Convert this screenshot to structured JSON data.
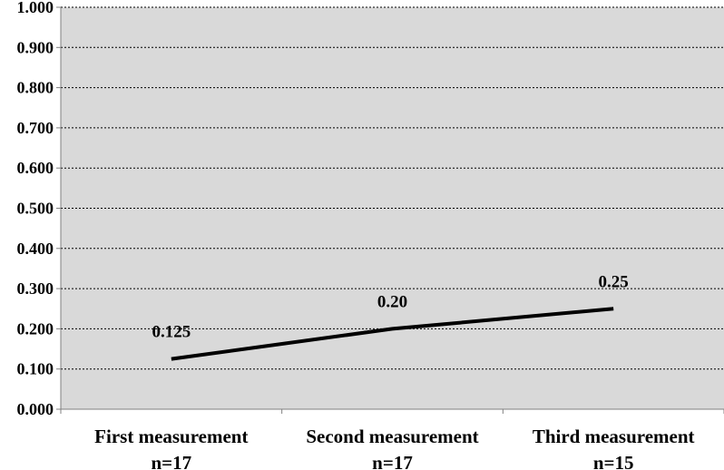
{
  "chart_data": {
    "type": "line",
    "categories": [
      [
        "First measurement",
        "n=17"
      ],
      [
        "Second measurement",
        "n=17"
      ],
      [
        "Third measurement",
        "n=15"
      ]
    ],
    "series": [
      {
        "values": [
          0.125,
          0.2,
          0.25
        ],
        "data_labels": [
          "0.125",
          "0.20",
          "0.25"
        ]
      }
    ],
    "ylim": [
      0,
      1
    ],
    "yticks": [
      "0.000",
      "0.100",
      "0.200",
      "0.300",
      "0.400",
      "0.500",
      "0.600",
      "0.700",
      "0.800",
      "0.900",
      "1.000"
    ],
    "grid": true,
    "legend": "none",
    "colors": {
      "plot_background": "#d9d9d9",
      "line": "#000000",
      "gridline": "#000000",
      "axis": "#808080"
    }
  }
}
